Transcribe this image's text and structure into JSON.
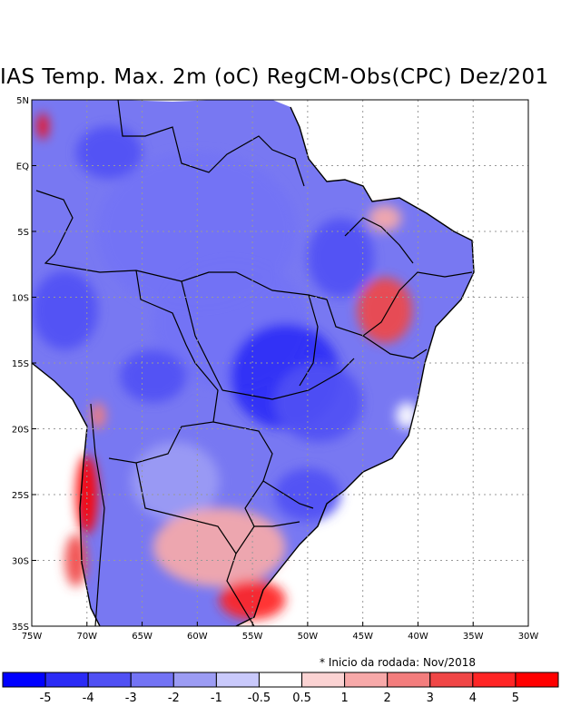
{
  "title": "IAS Temp. Max. 2m (oC) RegCM-Obs(CPC) Dez/201",
  "note": "* Inicio da rodada: Nov/2018",
  "y_ticks": [
    "5N",
    "EQ",
    "5S",
    "10S",
    "15S",
    "20S",
    "25S",
    "30S",
    "35S"
  ],
  "x_ticks": [
    "75W",
    "70W",
    "65W",
    "60W",
    "55W",
    "50W",
    "45W",
    "40W",
    "35W",
    "30W"
  ],
  "colorbar": {
    "labels": [
      "-5",
      "-4",
      "-3",
      "-2",
      "-1",
      "-0.5",
      "0.5",
      "1",
      "2",
      "3",
      "4",
      "5"
    ],
    "colors": [
      "#0000ff",
      "#2b2bf6",
      "#5050f4",
      "#7373f5",
      "#9c9cf4",
      "#c9c9fb",
      "#ffffff",
      "#fbd3d3",
      "#f7a9a9",
      "#f37d7d",
      "#f04646",
      "#ff2525",
      "#ff0000"
    ]
  },
  "map": {
    "lon_range": [
      -75,
      -30
    ],
    "lat_range": [
      -35,
      5
    ],
    "ocean_color": "#ffffff",
    "grid_style": "dotted",
    "blobs": [
      {
        "lon": -60,
        "lat": -5,
        "rx": 9,
        "ry": 6,
        "value": -2.5
      },
      {
        "lon": -57,
        "lat": -12,
        "rx": 7,
        "ry": 5,
        "value": -3
      },
      {
        "lon": -52,
        "lat": -16,
        "rx": 5,
        "ry": 4,
        "value": -4.5
      },
      {
        "lon": -72,
        "lat": -11,
        "rx": 3,
        "ry": 3,
        "value": -4
      },
      {
        "lon": -64,
        "lat": -16,
        "rx": 3,
        "ry": 2,
        "value": -4
      },
      {
        "lon": -47,
        "lat": -7,
        "rx": 3,
        "ry": 3,
        "value": -4
      },
      {
        "lon": -49,
        "lat": -18,
        "rx": 4,
        "ry": 3,
        "value": -4
      },
      {
        "lon": -50,
        "lat": -25,
        "rx": 3,
        "ry": 2,
        "value": -4
      },
      {
        "lon": -68,
        "lat": 1,
        "rx": 3,
        "ry": 2,
        "value": -3.5
      },
      {
        "lon": -62,
        "lat": -24,
        "rx": 4,
        "ry": 3,
        "value": -1.5
      },
      {
        "lon": -43,
        "lat": -11,
        "rx": 2.5,
        "ry": 2.5,
        "value": 3.5
      },
      {
        "lon": -43,
        "lat": -4,
        "rx": 1.5,
        "ry": 1,
        "value": 1.5
      },
      {
        "lon": -58,
        "lat": -29,
        "rx": 6,
        "ry": 3,
        "value": 1.5
      },
      {
        "lon": -55,
        "lat": -33,
        "rx": 3,
        "ry": 1.5,
        "value": 4
      },
      {
        "lon": -70,
        "lat": -25,
        "rx": 1,
        "ry": 3,
        "value": 5
      },
      {
        "lon": -74,
        "lat": 3,
        "rx": 0.5,
        "ry": 1,
        "value": 5
      },
      {
        "lon": -69,
        "lat": -19,
        "rx": 0.7,
        "ry": 1,
        "value": 2
      },
      {
        "lon": -41,
        "lat": -19,
        "rx": 1,
        "ry": 1,
        "value": 0
      },
      {
        "lon": -71,
        "lat": -30,
        "rx": 1,
        "ry": 2,
        "value": 3
      }
    ]
  }
}
